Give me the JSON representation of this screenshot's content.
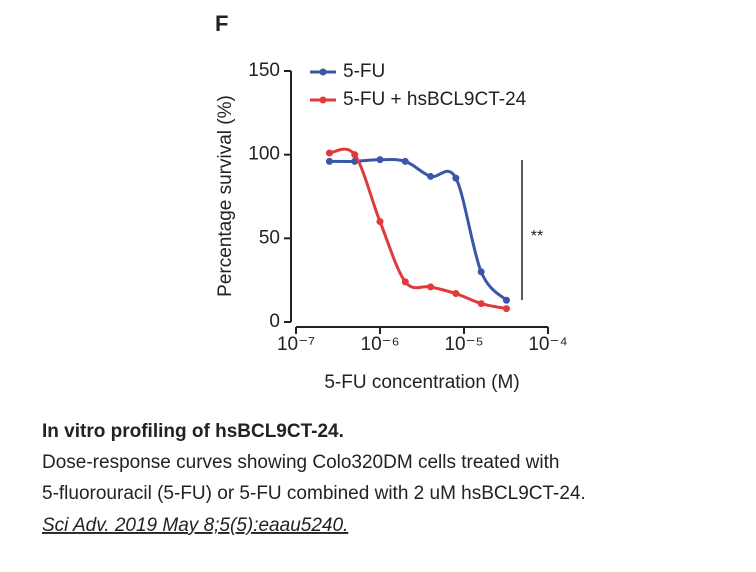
{
  "chart_data": {
    "type": "scatter",
    "panel_label": "F",
    "xlabel": "5-FU concentration (M)",
    "ylabel": "Percentage survival (%)",
    "xscale": "log",
    "xlim": [
      1e-07,
      0.0001
    ],
    "xticks": [
      {
        "value": 1e-07,
        "label": "10⁻⁷"
      },
      {
        "value": 1e-06,
        "label": "10⁻⁶"
      },
      {
        "value": 1e-05,
        "label": "10⁻⁵"
      },
      {
        "value": 0.0001,
        "label": "10⁻⁴"
      }
    ],
    "ylim": [
      0,
      150
    ],
    "yticks": [
      0,
      50,
      100,
      150
    ],
    "legend": "upper left",
    "x": [
      2.5e-07,
      5e-07,
      1e-06,
      2e-06,
      4e-06,
      8e-06,
      1.6e-05,
      3.2e-05
    ],
    "series": [
      {
        "name": "5-FU",
        "color": "#3a56a6",
        "values": [
          96,
          96,
          97,
          96,
          87,
          86,
          30,
          13
        ]
      },
      {
        "name": "5-FU + hsBCL9CT-24",
        "color": "#e03a3a",
        "values": [
          101,
          100,
          60,
          24,
          21,
          17,
          11,
          8
        ]
      }
    ],
    "annotation": "**"
  },
  "caption": {
    "title": "In vitro profiling of hsBCL9CT-24.",
    "lines": [
      "Dose-response curves showing Colo320DM cells treated with",
      "5-fluorouracil (5-FU) or 5-FU combined with 2 uM hsBCL9CT-24."
    ],
    "citation": "Sci Adv. 2019 May 8;5(5):eaau5240."
  }
}
